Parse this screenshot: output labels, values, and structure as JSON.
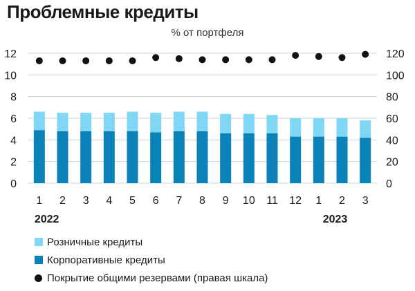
{
  "header": {
    "title": "Проблемные кредиты",
    "subtitle": "% от портфеля"
  },
  "colors": {
    "retail": "#7FD6F5",
    "corporate": "#0A82B8",
    "coverage": "#111111",
    "grid": "#c9d3d8"
  },
  "legend": {
    "retail_label": "Розничные кредиты",
    "corporate_label": "Корпоративные кредиты",
    "coverage_label": "Покрытие общими резервами (правая шкала)"
  },
  "chart_data": {
    "type": "bar",
    "stacked": true,
    "categories": [
      "1",
      "2",
      "3",
      "4",
      "5",
      "6",
      "7",
      "8",
      "9",
      "10",
      "11",
      "12",
      "1",
      "2",
      "3"
    ],
    "year_labels": [
      {
        "label": "2022",
        "category_index": 0
      },
      {
        "label": "2023",
        "category_index": 13
      }
    ],
    "series": [
      {
        "name": "Корпоративные кредиты",
        "type": "bar",
        "axis": "left",
        "values": [
          4.9,
          4.8,
          4.8,
          4.8,
          4.8,
          4.7,
          4.8,
          4.8,
          4.6,
          4.6,
          4.6,
          4.3,
          4.3,
          4.3,
          4.2
        ]
      },
      {
        "name": "Розничные кредиты",
        "type": "bar",
        "axis": "left",
        "values": [
          1.7,
          1.7,
          1.7,
          1.7,
          1.8,
          1.8,
          1.8,
          1.8,
          1.8,
          1.8,
          1.7,
          1.7,
          1.7,
          1.7,
          1.6
        ]
      },
      {
        "name": "Покрытие общими резервами (правая шкала)",
        "type": "scatter",
        "axis": "right",
        "values": [
          113,
          113,
          113,
          113,
          113,
          116,
          115,
          114,
          114,
          114,
          114,
          118,
          117,
          116,
          119
        ]
      }
    ],
    "left_axis": {
      "ylim": [
        0,
        12
      ],
      "ticks": [
        "0",
        "2",
        "4",
        "6",
        "8",
        "10",
        "12"
      ]
    },
    "right_axis": {
      "ylim": [
        0,
        120
      ],
      "ticks": [
        "0",
        "20",
        "40",
        "60",
        "80",
        "100",
        "120"
      ]
    },
    "grid": true,
    "legend_position": "bottom-left"
  }
}
